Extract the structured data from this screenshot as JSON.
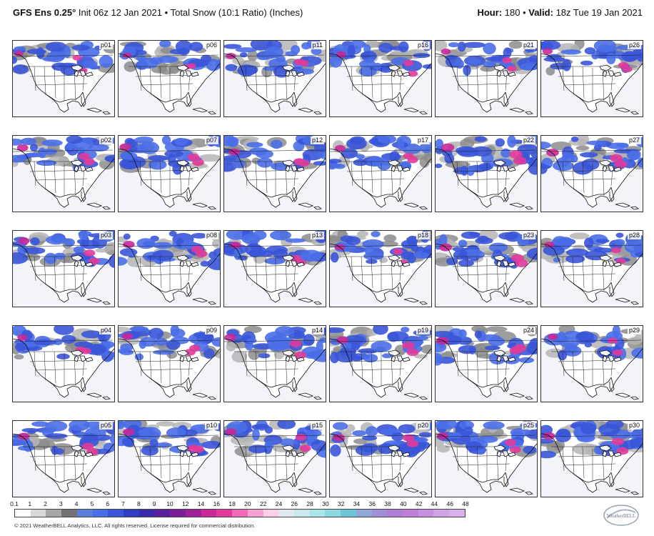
{
  "header": {
    "model": "GFS Ens 0.25°",
    "init": "Init 06z 12 Jan 2021",
    "separator": "•",
    "field": "Total Snow (10:1 Ratio) (Inches)",
    "hour_label": "Hour:",
    "hour_value": "180",
    "valid_label": "Valid:",
    "valid_value": "18z Tue 19 Jan 2021"
  },
  "panels": [
    {
      "label": "p01",
      "intensity": 0.5,
      "east": 0.4
    },
    {
      "label": "p06",
      "intensity": 0.45,
      "east": 0.5
    },
    {
      "label": "p11",
      "intensity": 0.6,
      "east": 0.7
    },
    {
      "label": "p16",
      "intensity": 0.6,
      "east": 0.8
    },
    {
      "label": "p21",
      "intensity": 0.55,
      "east": 0.6
    },
    {
      "label": "p26",
      "intensity": 0.6,
      "east": 0.9
    },
    {
      "label": "p02",
      "intensity": 0.7,
      "east": 0.6
    },
    {
      "label": "p07",
      "intensity": 0.75,
      "east": 0.7
    },
    {
      "label": "p12",
      "intensity": 0.7,
      "east": 0.7
    },
    {
      "label": "p17",
      "intensity": 0.65,
      "east": 0.8
    },
    {
      "label": "p22",
      "intensity": 0.9,
      "east": 0.85
    },
    {
      "label": "p27",
      "intensity": 0.85,
      "east": 0.7
    },
    {
      "label": "p03",
      "intensity": 0.7,
      "east": 0.75
    },
    {
      "label": "p08",
      "intensity": 0.75,
      "east": 0.8
    },
    {
      "label": "p13",
      "intensity": 0.7,
      "east": 0.6
    },
    {
      "label": "p18",
      "intensity": 0.6,
      "east": 0.5
    },
    {
      "label": "p23",
      "intensity": 0.85,
      "east": 0.9
    },
    {
      "label": "p28",
      "intensity": 0.55,
      "east": 0.7
    },
    {
      "label": "p04",
      "intensity": 0.6,
      "east": 0.5
    },
    {
      "label": "p09",
      "intensity": 0.7,
      "east": 0.6
    },
    {
      "label": "p14",
      "intensity": 0.75,
      "east": 0.6
    },
    {
      "label": "p19",
      "intensity": 0.8,
      "east": 0.8
    },
    {
      "label": "p24",
      "intensity": 0.85,
      "east": 0.85
    },
    {
      "label": "p29",
      "intensity": 0.6,
      "east": 0.6
    },
    {
      "label": "p05",
      "intensity": 0.75,
      "east": 0.7
    },
    {
      "label": "p10",
      "intensity": 0.75,
      "east": 0.7
    },
    {
      "label": "p15",
      "intensity": 0.7,
      "east": 0.75
    },
    {
      "label": "p20",
      "intensity": 0.75,
      "east": 0.8
    },
    {
      "label": "p25",
      "intensity": 0.7,
      "east": 0.7
    },
    {
      "label": "p30",
      "intensity": 0.8,
      "east": 0.75
    }
  ],
  "legend": {
    "ticks": [
      "0.1",
      "1",
      "2",
      "3",
      "4",
      "5",
      "6",
      "7",
      "8",
      "9",
      "10",
      "12",
      "14",
      "16",
      "18",
      "20",
      "22",
      "24",
      "26",
      "28",
      "30",
      "32",
      "34",
      "36",
      "38",
      "40",
      "42",
      "44",
      "46",
      "48"
    ],
    "colors": [
      "#ffffff",
      "#d9d9d9",
      "#a6a6a6",
      "#737373",
      "#5b7fd6",
      "#4a6ee8",
      "#3a55d8",
      "#2f3fc4",
      "#3a2aa8",
      "#5a1f9a",
      "#7a1f9a",
      "#a0209a",
      "#c8289a",
      "#e23a9a",
      "#f06ab8",
      "#f5a0d0",
      "#fbd0e6",
      "#e0e8f0",
      "#c8e8ee",
      "#a8e6ea",
      "#8ad8e0",
      "#6cc8d8",
      "#8fa8d8",
      "#a08ed6",
      "#b07ed6",
      "#c07ed8",
      "#c890e0",
      "#d2a2e6",
      "#d8b0ec"
    ]
  },
  "footer": {
    "copyright": "© 2021 WeatherBELL Analytics, LLC. All rights reserved. License required for commercial distribution.",
    "logo_text": "WeatherBELL"
  }
}
